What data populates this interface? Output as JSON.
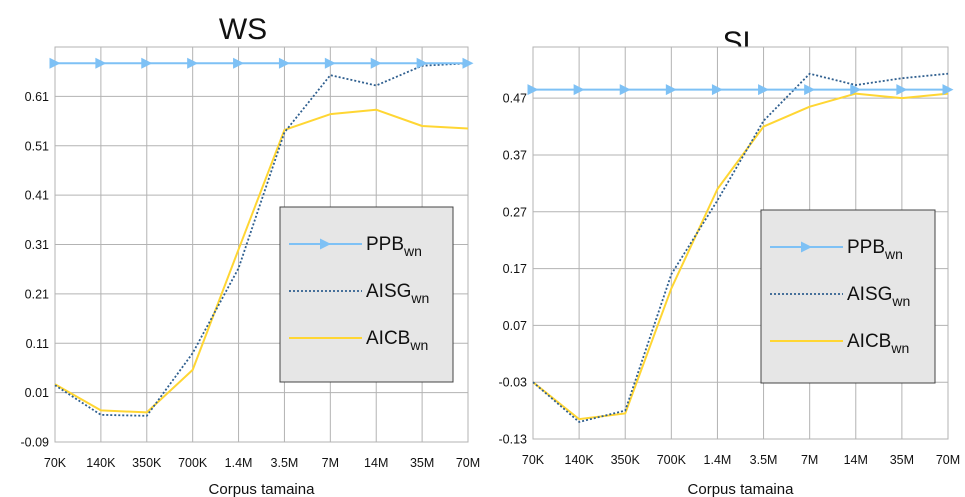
{
  "chart_data": [
    {
      "type": "line",
      "title": "WS",
      "xlabel": "Corpus tamaina",
      "ylabel": "",
      "categories": [
        "70K",
        "140K",
        "350K",
        "700K",
        "1.4M",
        "3.5M",
        "7M",
        "14M",
        "35M",
        "70M"
      ],
      "ylim": [
        -0.09,
        0.71
      ],
      "yticks": [
        "-0.09",
        "0.01",
        "0.11",
        "0.21",
        "0.31",
        "0.41",
        "0.51",
        "0.61"
      ],
      "grid": true,
      "legend_position": "right-center",
      "series": [
        {
          "name": "PPB",
          "sub": "wn",
          "color": "#7ec1f5",
          "style": "solid-triangle",
          "values": [
            0.677,
            0.677,
            0.677,
            0.677,
            0.677,
            0.677,
            0.677,
            0.677,
            0.677,
            0.677
          ]
        },
        {
          "name": "AISG",
          "sub": "wn",
          "color": "#2f5f8f",
          "style": "dotted",
          "values": [
            0.025,
            -0.035,
            -0.037,
            0.09,
            0.262,
            0.537,
            0.653,
            0.632,
            0.672,
            0.677
          ]
        },
        {
          "name": "AICB",
          "sub": "wn",
          "color": "#ffd633",
          "style": "solid",
          "values": [
            0.027,
            -0.026,
            -0.03,
            0.056,
            0.3,
            0.542,
            0.574,
            0.583,
            0.55,
            0.545
          ]
        }
      ]
    },
    {
      "type": "line",
      "title": "SL",
      "xlabel": "Corpus tamaina",
      "ylabel": "",
      "categories": [
        "70K",
        "140K",
        "350K",
        "700K",
        "1.4M",
        "3.5M",
        "7M",
        "14M",
        "35M",
        "70M"
      ],
      "ylim": [
        -0.13,
        0.56
      ],
      "yticks": [
        "-0.13",
        "-0.03",
        "0.07",
        "0.17",
        "0.27",
        "0.37",
        "0.47"
      ],
      "grid": true,
      "legend_position": "right-center",
      "series": [
        {
          "name": "PPB",
          "sub": "wn",
          "color": "#7ec1f5",
          "style": "solid-triangle",
          "values": [
            0.485,
            0.485,
            0.485,
            0.485,
            0.485,
            0.485,
            0.485,
            0.485,
            0.485,
            0.485
          ]
        },
        {
          "name": "AISG",
          "sub": "wn",
          "color": "#2f5f8f",
          "style": "dotted",
          "values": [
            -0.03,
            -0.1,
            -0.08,
            0.16,
            0.29,
            0.43,
            0.513,
            0.493,
            0.505,
            0.513
          ]
        },
        {
          "name": "AICB",
          "sub": "wn",
          "color": "#ffd633",
          "style": "solid",
          "values": [
            -0.03,
            -0.095,
            -0.085,
            0.135,
            0.31,
            0.42,
            0.455,
            0.478,
            0.47,
            0.478
          ]
        }
      ]
    }
  ]
}
